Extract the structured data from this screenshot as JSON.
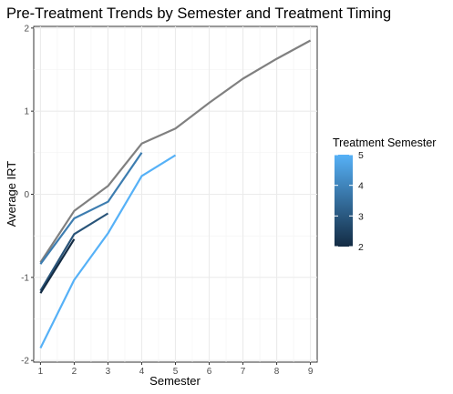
{
  "chart_data": {
    "type": "line",
    "title": "Pre-Treatment Trends by Semester and Treatment Timing",
    "xlabel": "Semester",
    "ylabel": "Average IRT",
    "xlim": [
      0.8,
      9.2
    ],
    "ylim": [
      -2.02,
      2.02
    ],
    "x_ticks": [
      1,
      2,
      3,
      4,
      5,
      6,
      7,
      8,
      9
    ],
    "y_ticks": [
      -2,
      -1,
      0,
      1,
      2
    ],
    "grid": true,
    "legend": {
      "title": "Treatment Semester",
      "placement": "right",
      "type": "colorbar",
      "ticks": [
        2,
        3,
        4,
        5
      ],
      "range": [
        2,
        5
      ],
      "color_low": "#132B43",
      "color_high": "#56B1F7"
    },
    "series": [
      {
        "treatment_semester": null,
        "color": "#808080",
        "x": [
          1,
          2,
          3,
          4,
          5,
          6,
          7,
          8,
          9
        ],
        "y": [
          -0.82,
          -0.2,
          0.1,
          0.61,
          0.79,
          1.1,
          1.39,
          1.63,
          1.85
        ]
      },
      {
        "treatment_semester": 5,
        "color": "#56B1F7",
        "x": [
          1,
          2,
          3,
          4,
          5
        ],
        "y": [
          -1.85,
          -1.03,
          -0.47,
          0.22,
          0.47
        ]
      },
      {
        "treatment_semester": 4,
        "color": "#3D7DB0",
        "x": [
          1,
          2,
          3,
          4
        ],
        "y": [
          -0.84,
          -0.29,
          -0.09,
          0.5
        ]
      },
      {
        "treatment_semester": 3,
        "color": "#295479",
        "x": [
          1,
          2,
          3
        ],
        "y": [
          -1.16,
          -0.48,
          -0.23
        ]
      },
      {
        "treatment_semester": 2,
        "color": "#132B43",
        "x": [
          1,
          2
        ],
        "y": [
          -1.19,
          -0.54
        ]
      }
    ]
  }
}
